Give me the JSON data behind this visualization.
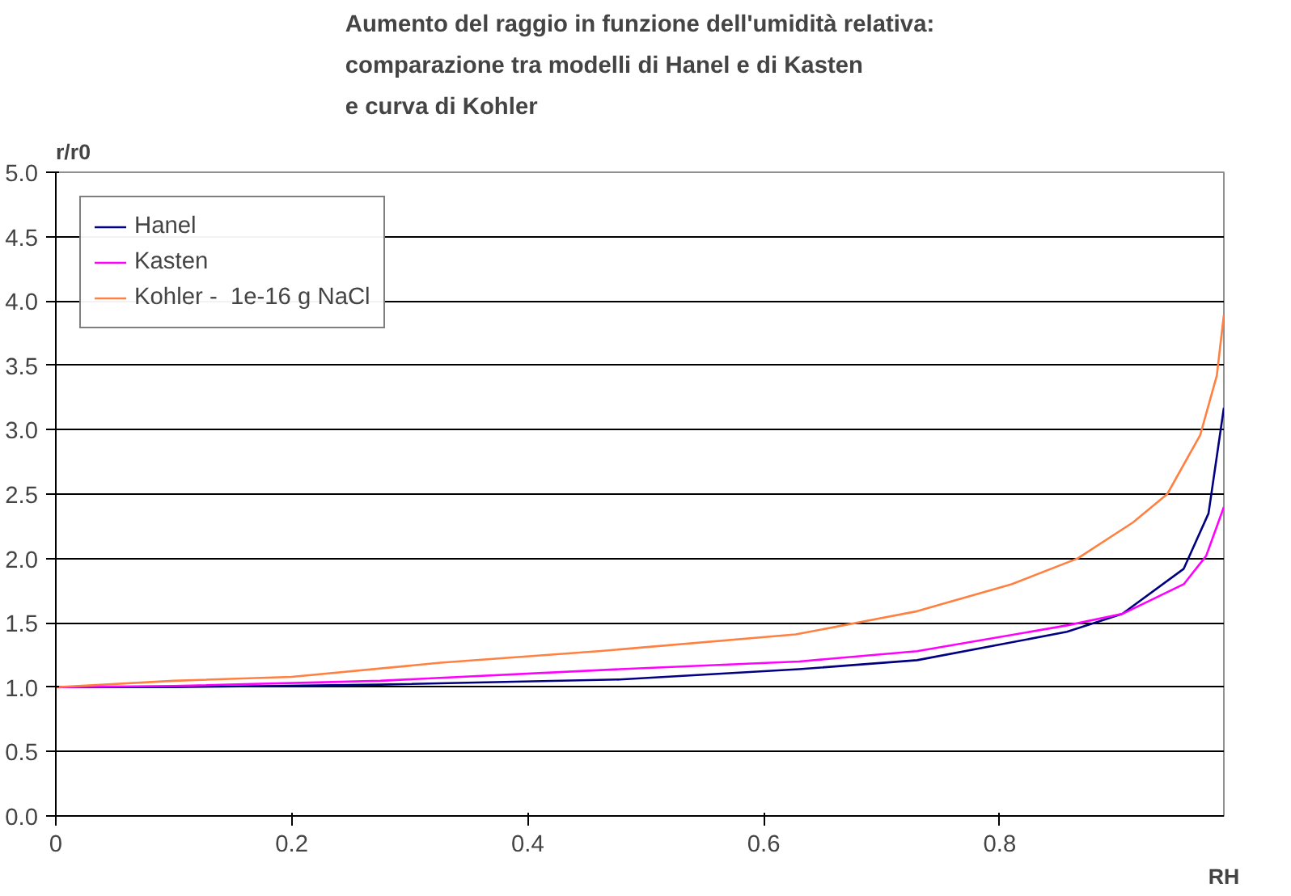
{
  "chart_data": {
    "type": "line",
    "title": "Aumento del raggio in funzione dell'umidità relativa:\ncomparazione tra modelli di Hanel e di Kasten\ne curva di Kohler",
    "xlabel": "RH",
    "ylabel": "r/r0",
    "xlim": [
      0,
      0.99
    ],
    "xticks": [
      {
        "value": 0,
        "label": "0"
      },
      0.2,
      0.4,
      0.6,
      0.8
    ],
    "ylim": [
      0,
      5
    ],
    "yticks": [
      {
        "value": 0,
        "label": "0.0"
      },
      0.5,
      {
        "value": 1,
        "label": "1.0"
      },
      1.5,
      {
        "value": 2,
        "label": "2.0"
      },
      2.5,
      {
        "value": 3,
        "label": "3.0"
      },
      3.5,
      {
        "value": 4,
        "label": "4.0"
      },
      4.5,
      {
        "value": 5,
        "label": "5.0"
      }
    ],
    "grid": "y",
    "legend": "top left",
    "marker": "none",
    "line_style": "solid",
    "series": [
      {
        "name": "Hanel",
        "color": "#000080",
        "x": [
          0,
          0.1,
          0.275,
          0.478,
          0.63,
          0.73,
          0.857,
          0.904,
          0.956,
          0.977,
          0.99
        ],
        "values": [
          1.0,
          1.0,
          1.02,
          1.06,
          1.14,
          1.21,
          1.43,
          1.57,
          1.92,
          2.35,
          3.17
        ]
      },
      {
        "name": "Kasten",
        "color": "#ff00ff",
        "x": [
          0,
          0.1,
          0.275,
          0.478,
          0.63,
          0.73,
          0.857,
          0.904,
          0.956,
          0.975,
          0.99
        ],
        "values": [
          1.0,
          1.01,
          1.05,
          1.14,
          1.2,
          1.28,
          1.48,
          1.57,
          1.8,
          2.02,
          2.4
        ]
      },
      {
        "name": "Kohler -  1e-16 g NaCl",
        "color": "#ff8040",
        "x": [
          0,
          0.1,
          0.2,
          0.326,
          0.46,
          0.627,
          0.73,
          0.81,
          0.866,
          0.913,
          0.942,
          0.97,
          0.984,
          0.99
        ],
        "values": [
          1.0,
          1.05,
          1.08,
          1.19,
          1.28,
          1.41,
          1.59,
          1.8,
          2.0,
          2.28,
          2.5,
          2.96,
          3.42,
          3.89
        ]
      }
    ]
  }
}
